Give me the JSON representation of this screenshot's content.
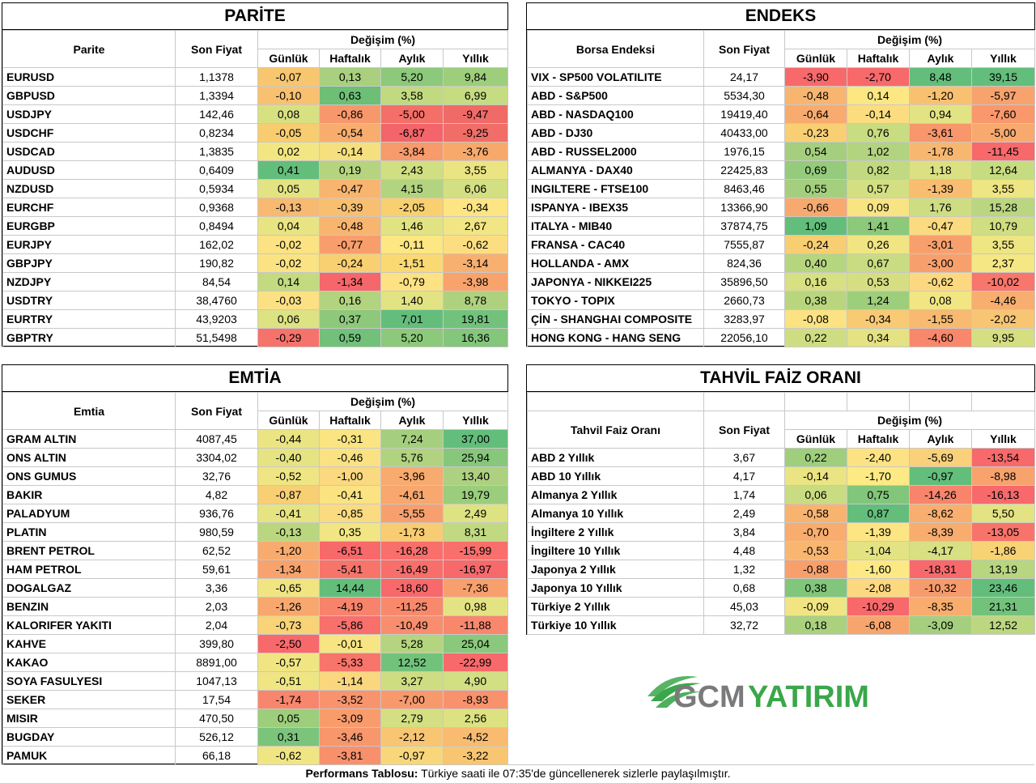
{
  "parite": {
    "title": "PARİTE",
    "col_name": "Parite",
    "col_price": "Son Fiyat",
    "col_change": "Değişim (%)",
    "periods": [
      "Günlük",
      "Haftalık",
      "Aylık",
      "Yıllık"
    ],
    "rows": [
      {
        "name": "EURUSD",
        "price": "1,1378",
        "vals": [
          "-0,07",
          "0,13",
          "5,20",
          "9,84"
        ],
        "colors": [
          "#f8c66f",
          "#a8d07f",
          "#8cc97a",
          "#9dce7b"
        ]
      },
      {
        "name": "GBPUSD",
        "price": "1,3394",
        "vals": [
          "-0,10",
          "0,63",
          "3,58",
          "6,99"
        ],
        "colors": [
          "#f8c170",
          "#6dbf75",
          "#c1da80",
          "#c6dc81"
        ]
      },
      {
        "name": "USDJPY",
        "price": "142,46",
        "vals": [
          "0,08",
          "-0,86",
          "-5,00",
          "-9,47"
        ],
        "colors": [
          "#d8e182",
          "#f7986c",
          "#f36f67",
          "#f06a67"
        ]
      },
      {
        "name": "USDCHF",
        "price": "0,8234",
        "vals": [
          "-0,05",
          "-0,54",
          "-6,87",
          "-9,25"
        ],
        "colors": [
          "#f8cd70",
          "#f8ad6f",
          "#f3656a",
          "#f06d68"
        ]
      },
      {
        "name": "USDCAD",
        "price": "1,3835",
        "vals": [
          "0,02",
          "-0,14",
          "-3,84",
          "-3,76"
        ],
        "colors": [
          "#f2e683",
          "#f5df7e",
          "#f79a6c",
          "#f7a96c"
        ]
      },
      {
        "name": "AUDUSD",
        "price": "0,6409",
        "vals": [
          "0,41",
          "0,19",
          "2,43",
          "3,55"
        ],
        "colors": [
          "#63be7b",
          "#b4d47f",
          "#cfdf82",
          "#eae482"
        ]
      },
      {
        "name": "NZDUSD",
        "price": "0,5934",
        "vals": [
          "0,05",
          "-0,47",
          "4,15",
          "6,06"
        ],
        "colors": [
          "#e2e383",
          "#f8b56f",
          "#b2d37f",
          "#d2df82"
        ]
      },
      {
        "name": "EURCHF",
        "price": "0,9368",
        "vals": [
          "-0,13",
          "-0,39",
          "-2,05",
          "-0,34"
        ],
        "colors": [
          "#f8b971",
          "#f8bf71",
          "#f8d06f",
          "#fee583"
        ]
      },
      {
        "name": "EURGBP",
        "price": "0,8494",
        "vals": [
          "0,04",
          "-0,48",
          "1,46",
          "2,67"
        ],
        "colors": [
          "#e9e483",
          "#f8b56f",
          "#e1e383",
          "#f1e683"
        ]
      },
      {
        "name": "EURJPY",
        "price": "162,02",
        "vals": [
          "-0,02",
          "-0,77",
          "-0,11",
          "-0,62"
        ],
        "colors": [
          "#fbe283",
          "#f89e6d",
          "#fde783",
          "#fcde82"
        ]
      },
      {
        "name": "GBPJPY",
        "price": "190,82",
        "vals": [
          "-0,02",
          "-0,24",
          "-1,51",
          "-3,14"
        ],
        "colors": [
          "#fbe283",
          "#f8cf71",
          "#fad973",
          "#f8b070"
        ]
      },
      {
        "name": "NZDJPY",
        "price": "84,54",
        "vals": [
          "0,14",
          "-1,34",
          "-0,79",
          "-3,98"
        ],
        "colors": [
          "#c3da81",
          "#f5676a",
          "#fce283",
          "#f8a36c"
        ]
      },
      {
        "name": "USDTRY",
        "price": "38,4760",
        "vals": [
          "-0,03",
          "0,16",
          "1,40",
          "8,78"
        ],
        "colors": [
          "#fbe183",
          "#b2d37f",
          "#e2e383",
          "#aed180"
        ]
      },
      {
        "name": "EURTRY",
        "price": "43,9203",
        "vals": [
          "0,06",
          "0,37",
          "7,01",
          "19,81"
        ],
        "colors": [
          "#dde283",
          "#8ec97b",
          "#63be7b",
          "#72c27c"
        ]
      },
      {
        "name": "GBPTRY",
        "price": "51,5498",
        "vals": [
          "-0,29",
          "0,59",
          "5,20",
          "16,36"
        ],
        "colors": [
          "#f6736b",
          "#71c17b",
          "#8cc97a",
          "#84c67b"
        ]
      }
    ]
  },
  "endeks": {
    "title": "ENDEKS",
    "col_name": "Borsa Endeksi",
    "col_price": "Son Fiyat",
    "col_change": "Değişim (%)",
    "periods": [
      "Günlük",
      "Haftalık",
      "Aylık",
      "Yıllık"
    ],
    "rows": [
      {
        "name": "VIX  - SP500 VOLATILITE",
        "price": "24,17",
        "vals": [
          "-3,90",
          "-2,70",
          "8,48",
          "39,15"
        ],
        "colors": [
          "#f8696b",
          "#f8696b",
          "#63be7b",
          "#63be7b"
        ]
      },
      {
        "name": "ABD - S&P500",
        "price": "5534,30",
        "vals": [
          "-0,48",
          "0,14",
          "-1,20",
          "-5,97"
        ],
        "colors": [
          "#f8b570",
          "#fde783",
          "#f8c170",
          "#f8a26d"
        ]
      },
      {
        "name": "ABD - NASDAQ100",
        "price": "19419,40",
        "vals": [
          "-0,64",
          "-0,14",
          "0,94",
          "-7,60"
        ],
        "colors": [
          "#f8ab6e",
          "#fbdd80",
          "#e2e383",
          "#f8986c"
        ]
      },
      {
        "name": "ABD - DJ30",
        "price": "40433,00",
        "vals": [
          "-0,23",
          "0,76",
          "-3,61",
          "-5,00"
        ],
        "colors": [
          "#f8cf73",
          "#c8dc81",
          "#f8966c",
          "#f8a96e"
        ]
      },
      {
        "name": "ABD - RUSSEL2000",
        "price": "1976,15",
        "vals": [
          "0,54",
          "1,02",
          "-1,78",
          "-11,45"
        ],
        "colors": [
          "#a5cf7e",
          "#b2d37f",
          "#f8b770",
          "#f8696b"
        ]
      },
      {
        "name": "ALMANYA - DAX40",
        "price": "22425,83",
        "vals": [
          "0,69",
          "0,82",
          "1,18",
          "12,64"
        ],
        "colors": [
          "#95cb7c",
          "#c1d981",
          "#dbe183",
          "#c6dc81"
        ]
      },
      {
        "name": "INGILTERE - FTSE100",
        "price": "8463,46",
        "vals": [
          "0,55",
          "0,57",
          "-1,39",
          "3,55"
        ],
        "colors": [
          "#a4cf7e",
          "#d2df82",
          "#f8bd70",
          "#eee583"
        ]
      },
      {
        "name": "ISPANYA - IBEX35",
        "price": "13366,90",
        "vals": [
          "-0,66",
          "0,09",
          "1,76",
          "15,28"
        ],
        "colors": [
          "#f8a96e",
          "#f8e483",
          "#cedd82",
          "#bad681"
        ]
      },
      {
        "name": "ITALYA - MIB40",
        "price": "37874,75",
        "vals": [
          "1,09",
          "1,41",
          "-0,47",
          "10,79"
        ],
        "colors": [
          "#63be7b",
          "#8cc97a",
          "#fcdb80",
          "#d0de82"
        ]
      },
      {
        "name": "FRANSA - CAC40",
        "price": "7555,87",
        "vals": [
          "-0,24",
          "0,26",
          "-3,01",
          "3,55"
        ],
        "colors": [
          "#f8ce72",
          "#f1e583",
          "#f8a06d",
          "#eee583"
        ]
      },
      {
        "name": "HOLLANDA - AMX",
        "price": "824,36",
        "vals": [
          "0,40",
          "0,67",
          "-3,00",
          "2,37"
        ],
        "colors": [
          "#b6d57f",
          "#cadc81",
          "#f8a06d",
          "#f5e783"
        ]
      },
      {
        "name": "JAPONYA - NIKKEI225",
        "price": "35896,50",
        "vals": [
          "0,16",
          "0,53",
          "-0,62",
          "-10,02"
        ],
        "colors": [
          "#d7e082",
          "#d5df82",
          "#fcd880",
          "#f8766b"
        ]
      },
      {
        "name": "TOKYO - TOPIX",
        "price": "2660,73",
        "vals": [
          "0,38",
          "1,24",
          "0,08",
          "-4,46"
        ],
        "colors": [
          "#b9d67f",
          "#9dce7b",
          "#f1e683",
          "#f8ae6f"
        ]
      },
      {
        "name": "ÇİN - SHANGHAI COMPOSITE",
        "price": "3283,97",
        "vals": [
          "-0,08",
          "-0,34",
          "-1,55",
          "-2,02"
        ],
        "colors": [
          "#fbe282",
          "#f8ca73",
          "#f8ba70",
          "#f8c572"
        ]
      },
      {
        "name": "HONG KONG - HANG SENG",
        "price": "22056,10",
        "vals": [
          "0,22",
          "0,34",
          "-4,60",
          "9,95"
        ],
        "colors": [
          "#cfdd82",
          "#e4e283",
          "#f8876b",
          "#d5df82"
        ]
      }
    ]
  },
  "emtia": {
    "title": "EMTİA",
    "col_name": "Emtia",
    "col_price": "Son Fiyat",
    "col_change": "Değişim (%)",
    "periods": [
      "Günlük",
      "Haftalık",
      "Aylık",
      "Yıllık"
    ],
    "rows": [
      {
        "name": "GRAM ALTIN",
        "price": "4087,45",
        "vals": [
          "-0,44",
          "-0,31",
          "7,24",
          "37,00"
        ],
        "colors": [
          "#ebe483",
          "#fbe582",
          "#a5cf7e",
          "#63be7b"
        ]
      },
      {
        "name": "ONS ALTIN",
        "price": "3304,02",
        "vals": [
          "-0,40",
          "-0,46",
          "5,76",
          "25,94"
        ],
        "colors": [
          "#e6e383",
          "#fae283",
          "#b1d37f",
          "#86c77b"
        ]
      },
      {
        "name": "ONS GUMUS",
        "price": "32,76",
        "vals": [
          "-0,52",
          "-1,00",
          "-3,96",
          "13,40"
        ],
        "colors": [
          "#efe583",
          "#fad980",
          "#f8ab6e",
          "#add180"
        ]
      },
      {
        "name": "BAKIR",
        "price": "4,82",
        "vals": [
          "-0,87",
          "-0,41",
          "-4,61",
          "19,79"
        ],
        "colors": [
          "#f9cf74",
          "#fbe382",
          "#f8a76e",
          "#9acd7c"
        ]
      },
      {
        "name": "PALADYUM",
        "price": "936,76",
        "vals": [
          "-0,41",
          "-0,85",
          "-5,55",
          "2,49"
        ],
        "colors": [
          "#e6e383",
          "#fadb80",
          "#f8a06d",
          "#dde282"
        ]
      },
      {
        "name": "PLATIN",
        "price": "980,59",
        "vals": [
          "-0,13",
          "0,35",
          "-1,73",
          "8,31"
        ],
        "colors": [
          "#bad67f",
          "#f2e583",
          "#f8cc73",
          "#c1d981"
        ]
      },
      {
        "name": "BRENT PETROL",
        "price": "62,52",
        "vals": [
          "-1,20",
          "-6,51",
          "-16,28",
          "-15,99"
        ],
        "colors": [
          "#f8ab6e",
          "#f8696b",
          "#f86f6b",
          "#f86f6b"
        ]
      },
      {
        "name": "HAM PETROL",
        "price": "59,61",
        "vals": [
          "-1,34",
          "-5,41",
          "-16,49",
          "-16,97"
        ],
        "colors": [
          "#f8a36d",
          "#f8746b",
          "#f86e6b",
          "#f8696b"
        ]
      },
      {
        "name": "DOGALGAZ",
        "price": "3,36",
        "vals": [
          "-0,65",
          "14,44",
          "-18,60",
          "-7,36"
        ],
        "colors": [
          "#f1e582",
          "#63be7b",
          "#f8696b",
          "#f8a06d"
        ]
      },
      {
        "name": "BENZIN",
        "price": "2,03",
        "vals": [
          "-1,26",
          "-4,19",
          "-11,25",
          "0,98"
        ],
        "colors": [
          "#f8a86e",
          "#f8836c",
          "#f8896c",
          "#e4e383"
        ]
      },
      {
        "name": "KALORIFER YAKITI",
        "price": "2,04",
        "vals": [
          "-0,73",
          "-5,86",
          "-10,49",
          "-11,88"
        ],
        "colors": [
          "#f8d377",
          "#f86f6b",
          "#f88e6d",
          "#f8876c"
        ]
      },
      {
        "name": "KAHVE",
        "price": "399,80",
        "vals": [
          "-2,50",
          "-0,01",
          "5,28",
          "25,04"
        ],
        "colors": [
          "#f8696b",
          "#f7e583",
          "#b5d47f",
          "#8ac87b"
        ]
      },
      {
        "name": "KAKAO",
        "price": "8891,00",
        "vals": [
          "-0,57",
          "-5,33",
          "12,52",
          "-22,99"
        ],
        "colors": [
          "#f0e583",
          "#f8756b",
          "#72c27c",
          "#f8696b"
        ]
      },
      {
        "name": "SOYA FASULYESI",
        "price": "1047,13",
        "vals": [
          "-0,51",
          "-1,14",
          "3,27",
          "4,90"
        ],
        "colors": [
          "#efe583",
          "#fad77f",
          "#cfdd82",
          "#d2df82"
        ]
      },
      {
        "name": "SEKER",
        "price": "17,54",
        "vals": [
          "-1,74",
          "-3,52",
          "-7,00",
          "-8,93"
        ],
        "colors": [
          "#f8866c",
          "#f8946d",
          "#f8996c",
          "#f8926c"
        ]
      },
      {
        "name": "MISIR",
        "price": "470,50",
        "vals": [
          "0,05",
          "-3,09",
          "2,79",
          "2,56"
        ],
        "colors": [
          "#9dce7c",
          "#f89c6c",
          "#d3df82",
          "#dce282"
        ]
      },
      {
        "name": "BUGDAY",
        "price": "526,12",
        "vals": [
          "0,31",
          "-3,46",
          "-2,12",
          "-4,52"
        ],
        "colors": [
          "#7bc47c",
          "#f8966c",
          "#f8c672",
          "#f8bb70"
        ]
      },
      {
        "name": "PAMUK",
        "price": "66,18",
        "vals": [
          "-0,62",
          "-3,81",
          "-0,97",
          "-3,22"
        ],
        "colors": [
          "#f0e583",
          "#f8906c",
          "#f8d77b",
          "#f8c571"
        ]
      }
    ]
  },
  "tahvil": {
    "title": "TAHVİL FAİZ ORANI",
    "col_name": "Tahvil Faiz Oranı",
    "col_price": "Son Fiyat",
    "col_change": "Değişim (%)",
    "periods": [
      "Günlük",
      "Haftalık",
      "Aylık",
      "Yıllık"
    ],
    "rows": [
      {
        "name": "ABD 2 Yıllık",
        "price": "3,67",
        "vals": [
          "0,22",
          "-2,40",
          "-5,69",
          "-13,54"
        ],
        "colors": [
          "#9fce7c",
          "#fce283",
          "#f8d17a",
          "#f8696b"
        ]
      },
      {
        "name": "ABD 10 Yıllık",
        "price": "4,17",
        "vals": [
          "-0,14",
          "-1,70",
          "-0,97",
          "-8,98"
        ],
        "colors": [
          "#eae482",
          "#fdea84",
          "#63be7b",
          "#f8a26d"
        ]
      },
      {
        "name": "Almanya 2 Yıllık",
        "price": "1,74",
        "vals": [
          "0,06",
          "0,75",
          "-14,26",
          "-16,13"
        ],
        "colors": [
          "#c9dc81",
          "#82c67b",
          "#f8846c",
          "#f8696b"
        ]
      },
      {
        "name": "Almanya 10 Yıllık",
        "price": "2,49",
        "vals": [
          "-0,58",
          "0,87",
          "-8,62",
          "5,50"
        ],
        "colors": [
          "#f8b36f",
          "#63be7b",
          "#f8ae6f",
          "#e3e383"
        ]
      },
      {
        "name": "İngiltere 2 Yıllık",
        "price": "3,84",
        "vals": [
          "-0,70",
          "-1,39",
          "-8,39",
          "-13,05"
        ],
        "colors": [
          "#f8ac6e",
          "#fde583",
          "#f8ad6f",
          "#f8746b"
        ]
      },
      {
        "name": "İngiltere 10 Yıllık",
        "price": "4,48",
        "vals": [
          "-0,53",
          "-1,04",
          "-4,17",
          "-1,86"
        ],
        "colors": [
          "#f8b670",
          "#e3e383",
          "#d7e082",
          "#f8d376"
        ]
      },
      {
        "name": "Japonya 2 Yıllık",
        "price": "1,32",
        "vals": [
          "-0,88",
          "-1,60",
          "-18,31",
          "13,19"
        ],
        "colors": [
          "#f8a06c",
          "#fde984",
          "#f8696b",
          "#b8d57f"
        ]
      },
      {
        "name": "Japonya 10 Yıllık",
        "price": "0,68",
        "vals": [
          "0,38",
          "-2,08",
          "-10,32",
          "23,46"
        ],
        "colors": [
          "#82c67b",
          "#fcd880",
          "#f89b6c",
          "#63be7b"
        ]
      },
      {
        "name": "Türkiye 2 Yıllık",
        "price": "45,03",
        "vals": [
          "-0,09",
          "-10,29",
          "-8,35",
          "21,31"
        ],
        "colors": [
          "#f1e583",
          "#f8696b",
          "#f8ad6f",
          "#72c27c"
        ]
      },
      {
        "name": "Türkiye 10 Yıllık",
        "price": "32,72",
        "vals": [
          "0,18",
          "-6,08",
          "-3,09",
          "12,52"
        ],
        "colors": [
          "#a9d17e",
          "#f8a56d",
          "#a5cf7e",
          "#bcd780"
        ]
      }
    ]
  },
  "logo": {
    "text_gcm": "GCM",
    "text_yatirim": "YATIRIM",
    "green": "#3aa74a",
    "gray": "#7a7a7a"
  },
  "footer": {
    "bold": "Performans Tablosu:",
    "text": " Türkiye saati ile 07:35'de güncellenerek sizlerle paylaşılmıştır."
  }
}
